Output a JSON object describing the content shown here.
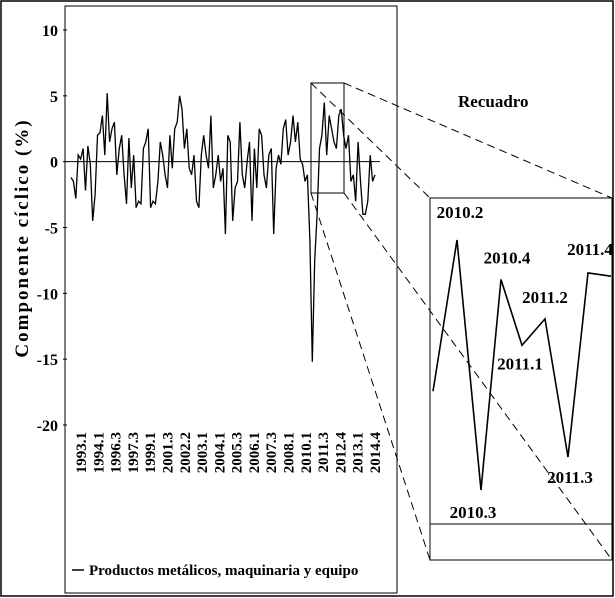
{
  "chart_data": {
    "type": "line",
    "ylabel": "Componente cíclico (%)",
    "ylim": [
      -20,
      10
    ],
    "yticks": [
      10,
      5,
      0,
      -5,
      -10,
      -15,
      -20
    ],
    "xtick_labels": [
      "1993.1",
      "1994.1",
      "1996.3",
      "1997.3",
      "1999.1",
      "2001.3",
      "2002.2",
      "2003.1",
      "2004.1",
      "2005.3",
      "2006.1",
      "2007.3",
      "2008.1",
      "2010.1",
      "2011.3",
      "2012.4",
      "2013.1",
      "2014.4"
    ],
    "series": [
      {
        "name": "Productos metálicos, maquinaria y equipo",
        "values": [
          -1.2,
          -1.5,
          -2.8,
          0.5,
          0.2,
          1.0,
          -2.2,
          1.2,
          -0.2,
          -4.5,
          -2.5,
          2.0,
          2.2,
          3.5,
          0.5,
          5.2,
          1.5,
          2.5,
          3.0,
          -1.0,
          1.0,
          2.0,
          -1.0,
          -3.2,
          1.8,
          -2.0,
          0.5,
          -3.5,
          -3.0,
          -3.2,
          1.0,
          1.5,
          2.5,
          -3.5,
          -3.0,
          -3.2,
          -1.5,
          1.5,
          0.5,
          -1.0,
          -2.0,
          2.0,
          -0.5,
          2.5,
          3.0,
          5.0,
          4.0,
          1.0,
          2.5,
          -0.5,
          -1.0,
          0.5,
          -3.0,
          -3.5,
          0.5,
          2.0,
          0.5,
          -0.5,
          3.5,
          -2.0,
          -1.0,
          0.5,
          -1.5,
          -0.5,
          -5.5,
          2.0,
          1.5,
          -4.5,
          -2.0,
          -1.5,
          3.0,
          -1.0,
          -2.0,
          0.0,
          1.5,
          -4.5,
          1.0,
          -2.0,
          2.5,
          2.0,
          -1.0,
          -2.0,
          0.5,
          1.0,
          -5.5,
          -0.5,
          0.5,
          -0.2,
          2.5,
          3.2,
          0.5,
          1.5,
          3.5,
          1.5,
          3.0,
          0.2,
          -0.2,
          -1.5,
          -1.0,
          -6.0,
          -15.2,
          -7.5,
          -4.0,
          1.0,
          2.0,
          4.5,
          0.5,
          3.5,
          2.5,
          1.5,
          1.0,
          3.5,
          4.0,
          2.0,
          1.0,
          2.0,
          -1.5,
          -1.0,
          -3.0,
          1.5,
          -1.5,
          -4.0,
          -4.0,
          -3.0,
          0.5,
          -1.5,
          -1.0
        ]
      }
    ],
    "inset": {
      "title": "Recuadro",
      "points": [
        {
          "label": "",
          "value": 0.0
        },
        {
          "label": "2010.2",
          "value": 4.6
        },
        {
          "label": "2010.3",
          "value": -3.0
        },
        {
          "label": "2010.4",
          "value": 3.4
        },
        {
          "label": "2011.1",
          "value": 1.4
        },
        {
          "label": "2011.2",
          "value": 2.2
        },
        {
          "label": "2011.3",
          "value": -2.0
        },
        {
          "label": "2011.4",
          "value": 3.6
        },
        {
          "label": "",
          "value": 3.5
        }
      ]
    },
    "legend": "top-bottom"
  }
}
